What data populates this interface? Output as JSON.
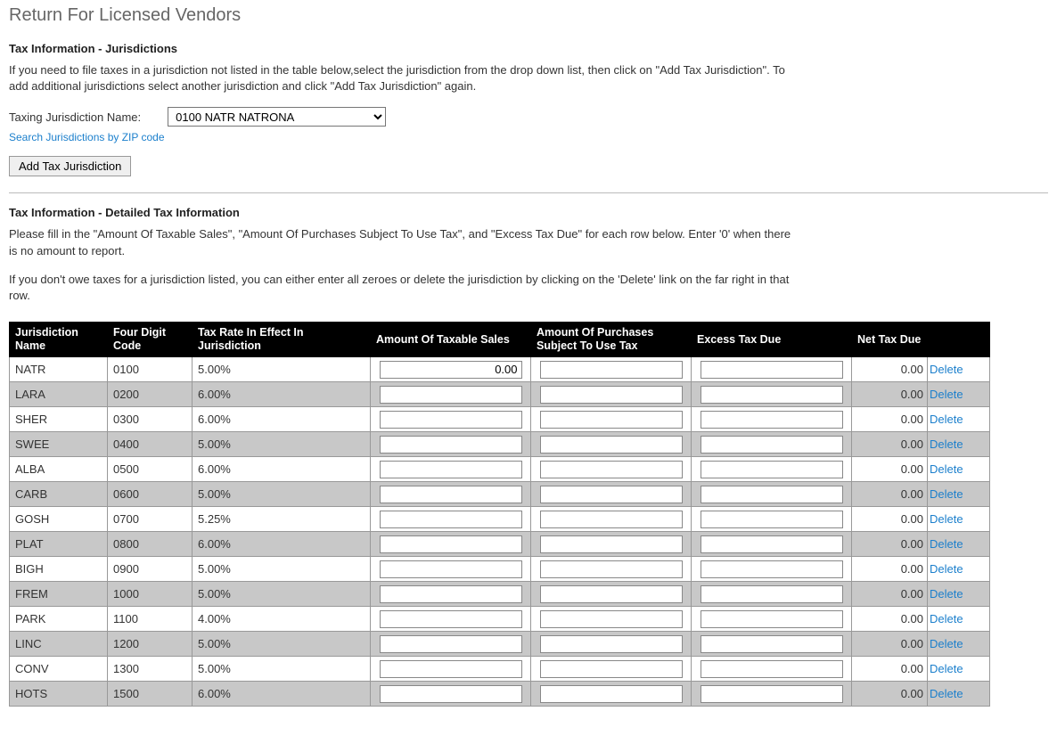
{
  "page_title": "Return For Licensed Vendors",
  "sections": {
    "jurisdictions": {
      "title": "Tax Information - Jurisdictions",
      "blurb": "If you need to file taxes in a jurisdiction not listed in the table below,select the jurisdiction from the drop down list, then click on \"Add Tax Jurisdiction\". To add additional jurisdictions select another jurisdiction and click \"Add Tax Jurisdiction\" again.",
      "field_label": "Taxing Jurisdiction Name:",
      "select_value": "0100 NATR NATRONA",
      "zip_link": "Search Jurisdictions by ZIP code",
      "add_button": "Add Tax Jurisdiction"
    },
    "detail": {
      "title": "Tax Information - Detailed Tax Information",
      "blurb1": "Please fill in the \"Amount Of Taxable Sales\", \"Amount Of Purchases Subject To Use Tax\", and \"Excess Tax Due\" for each row below. Enter '0' when there is no amount to report.",
      "blurb2": "If you don't owe taxes for a jurisdiction listed, you can either enter all zeroes or delete the jurisdiction by clicking on the 'Delete' link on the far right in that row."
    }
  },
  "table": {
    "columns": [
      "Jurisdiction Name",
      "Four Digit Code",
      "Tax Rate In Effect In Jurisdiction",
      "Amount Of Taxable Sales",
      "Amount Of Purchases Subject To Use Tax",
      "Excess Tax Due",
      "Net Tax Due",
      ""
    ],
    "delete_label": "Delete",
    "rows": [
      {
        "name": "NATR",
        "code": "0100",
        "rate": "5.00%",
        "sales": "0.00",
        "purch": "",
        "excess": "",
        "net": "0.00"
      },
      {
        "name": "LARA",
        "code": "0200",
        "rate": "6.00%",
        "sales": "",
        "purch": "",
        "excess": "",
        "net": "0.00"
      },
      {
        "name": "SHER",
        "code": "0300",
        "rate": "6.00%",
        "sales": "",
        "purch": "",
        "excess": "",
        "net": "0.00"
      },
      {
        "name": "SWEE",
        "code": "0400",
        "rate": "5.00%",
        "sales": "",
        "purch": "",
        "excess": "",
        "net": "0.00"
      },
      {
        "name": "ALBA",
        "code": "0500",
        "rate": "6.00%",
        "sales": "",
        "purch": "",
        "excess": "",
        "net": "0.00"
      },
      {
        "name": "CARB",
        "code": "0600",
        "rate": "5.00%",
        "sales": "",
        "purch": "",
        "excess": "",
        "net": "0.00"
      },
      {
        "name": "GOSH",
        "code": "0700",
        "rate": "5.25%",
        "sales": "",
        "purch": "",
        "excess": "",
        "net": "0.00"
      },
      {
        "name": "PLAT",
        "code": "0800",
        "rate": "6.00%",
        "sales": "",
        "purch": "",
        "excess": "",
        "net": "0.00"
      },
      {
        "name": "BIGH",
        "code": "0900",
        "rate": "5.00%",
        "sales": "",
        "purch": "",
        "excess": "",
        "net": "0.00"
      },
      {
        "name": "FREM",
        "code": "1000",
        "rate": "5.00%",
        "sales": "",
        "purch": "",
        "excess": "",
        "net": "0.00"
      },
      {
        "name": "PARK",
        "code": "1100",
        "rate": "4.00%",
        "sales": "",
        "purch": "",
        "excess": "",
        "net": "0.00"
      },
      {
        "name": "LINC",
        "code": "1200",
        "rate": "5.00%",
        "sales": "",
        "purch": "",
        "excess": "",
        "net": "0.00"
      },
      {
        "name": "CONV",
        "code": "1300",
        "rate": "5.00%",
        "sales": "",
        "purch": "",
        "excess": "",
        "net": "0.00"
      },
      {
        "name": "HOTS",
        "code": "1500",
        "rate": "6.00%",
        "sales": "",
        "purch": "",
        "excess": "",
        "net": "0.00"
      }
    ]
  },
  "colors": {
    "header_bg": "#000000",
    "header_fg": "#ffffff",
    "row_even_bg": "#ffffff",
    "row_odd_bg": "#c8c8c8",
    "link_color": "#1b7fcc",
    "border_color": "#999999"
  }
}
